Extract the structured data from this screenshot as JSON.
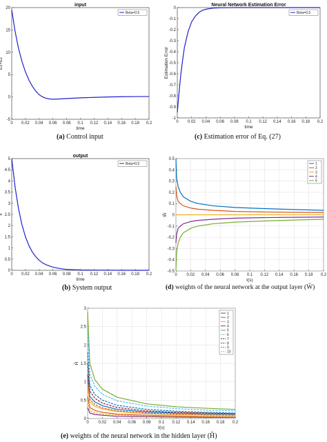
{
  "colors": {
    "blue": "#1f1fd0",
    "c1": "#0072bd",
    "c2": "#d95319",
    "c3": "#edb120",
    "c4": "#7e2f8e",
    "c5": "#77ac30",
    "c6": "#4dbeee",
    "c7": "#a2142f"
  },
  "captions": {
    "a": {
      "letter": "(a)",
      "text": " Control input"
    },
    "c": {
      "letter": "(c)",
      "text": " Estimation error of Eq. (27)"
    },
    "b": {
      "letter": "(b)",
      "text": " System output"
    },
    "d": {
      "letter": "(d)",
      "text": " weights of the neural network at the output layer (Ŵ)"
    },
    "e": {
      "letter": "(e)",
      "text": " weights of the neural network in the hidden layer (Ĥ)"
    }
  },
  "chart_data": [
    {
      "id": "a",
      "type": "line",
      "title": "input",
      "xlabel": "time",
      "ylabel": "u1+u2",
      "xlim": [
        0,
        0.2
      ],
      "ylim": [
        -5,
        20
      ],
      "xticks": [
        "0",
        "0.02",
        "0.04",
        "0.06",
        "0.08",
        "0.1",
        "0.12",
        "0.14",
        "0.16",
        "0.18",
        "0.2"
      ],
      "yticks": [
        "-5",
        "0",
        "5",
        "10",
        "15",
        "20"
      ],
      "grid": false,
      "legend_position": "top-right",
      "series": [
        {
          "name": "Beta=0.5",
          "color": "#1f1fd0",
          "x": [
            0,
            0.005,
            0.01,
            0.015,
            0.02,
            0.025,
            0.03,
            0.035,
            0.04,
            0.045,
            0.05,
            0.055,
            0.06,
            0.07,
            0.08,
            0.1,
            0.12,
            0.14,
            0.16,
            0.18,
            0.2
          ],
          "y": [
            19.5,
            14.6,
            10.8,
            7.9,
            5.6,
            3.8,
            2.4,
            1.3,
            0.5,
            0.0,
            -0.3,
            -0.45,
            -0.5,
            -0.45,
            -0.35,
            -0.2,
            -0.1,
            0.0,
            0.05,
            0.08,
            0.1
          ]
        }
      ]
    },
    {
      "id": "c",
      "type": "line",
      "title": "Neural Network Estimation Error",
      "xlabel": "time",
      "ylabel": "Estimation Error",
      "xlim": [
        0,
        0.2
      ],
      "ylim": [
        -1,
        0
      ],
      "xticks": [
        "0",
        "0.02",
        "0.04",
        "0.06",
        "0.08",
        "0.1",
        "0.12",
        "0.14",
        "0.16",
        "0.18",
        "0.2"
      ],
      "yticks": [
        "-1",
        "-0.9",
        "-0.8",
        "-0.7",
        "-0.6",
        "-0.5",
        "-0.4",
        "-0.3",
        "-0.2",
        "-0.1",
        "0"
      ],
      "grid": false,
      "legend_position": "top-right",
      "series": [
        {
          "name": "Beta=0.5",
          "color": "#1f1fd0",
          "x": [
            0,
            0.002,
            0.005,
            0.008,
            0.01,
            0.015,
            0.02,
            0.025,
            0.03,
            0.035,
            0.04,
            0.05,
            0.06,
            0.08,
            0.1,
            0.15,
            0.2
          ],
          "y": [
            -0.95,
            -0.8,
            -0.6,
            -0.45,
            -0.36,
            -0.22,
            -0.13,
            -0.08,
            -0.045,
            -0.025,
            -0.015,
            -0.005,
            -0.002,
            0,
            0,
            0,
            0
          ]
        }
      ]
    },
    {
      "id": "b",
      "type": "line",
      "title": "output",
      "xlabel": "time",
      "ylabel": "x",
      "xlim": [
        0,
        0.2
      ],
      "ylim": [
        0,
        5
      ],
      "xticks": [
        "0",
        "0.02",
        "0.04",
        "0.06",
        "0.08",
        "0.1",
        "0.12",
        "0.14",
        "0.16",
        "0.18",
        "0.2"
      ],
      "yticks": [
        "0",
        "0.5",
        "1",
        "1.5",
        "2",
        "2.5",
        "3",
        "3.5",
        "4",
        "4.5",
        "5"
      ],
      "grid": false,
      "legend_position": "top-right",
      "series": [
        {
          "name": "Beta=0.5",
          "color": "#1f1fd0",
          "x": [
            0,
            0.005,
            0.01,
            0.015,
            0.02,
            0.025,
            0.03,
            0.035,
            0.04,
            0.045,
            0.05,
            0.06,
            0.07,
            0.08,
            0.1,
            0.12,
            0.15,
            0.2
          ],
          "y": [
            5,
            3.7,
            2.74,
            2.03,
            1.5,
            1.11,
            0.82,
            0.61,
            0.45,
            0.33,
            0.25,
            0.14,
            0.08,
            0.04,
            0.015,
            0.01,
            0.005,
            0
          ]
        }
      ]
    },
    {
      "id": "d",
      "type": "line",
      "title": "",
      "xlabel": "t(s)",
      "ylabel": "Ŵ",
      "xlim": [
        0,
        0.2
      ],
      "ylim": [
        -0.5,
        0.5
      ],
      "xticks": [
        "0",
        "0.02",
        "0.04",
        "0.06",
        "0.08",
        "0.1",
        "0.12",
        "0.14",
        "0.16",
        "0.18",
        "0.2"
      ],
      "yticks": [
        "-0.5",
        "-0.4",
        "-0.3",
        "-0.2",
        "-0.1",
        "0",
        "0.1",
        "0.2",
        "0.3",
        "0.4",
        "0.5"
      ],
      "grid": true,
      "legend_position": "top-right",
      "series": [
        {
          "name": "1",
          "color": "#0072bd",
          "x": [
            0,
            0.001,
            0.003,
            0.006,
            0.01,
            0.02,
            0.03,
            0.05,
            0.08,
            0.12,
            0.16,
            0.2
          ],
          "y": [
            0.5,
            0.33,
            0.25,
            0.2,
            0.16,
            0.12,
            0.1,
            0.08,
            0.065,
            0.055,
            0.047,
            0.04
          ]
        },
        {
          "name": "2",
          "color": "#d95319",
          "x": [
            0,
            0.001,
            0.003,
            0.006,
            0.01,
            0.02,
            0.03,
            0.05,
            0.08,
            0.12,
            0.16,
            0.2
          ],
          "y": [
            0.25,
            0.17,
            0.12,
            0.1,
            0.08,
            0.06,
            0.05,
            0.04,
            0.03,
            0.025,
            0.022,
            0.02
          ]
        },
        {
          "name": "3",
          "color": "#edb120",
          "x": [
            0,
            0.005,
            0.02,
            0.05,
            0.1,
            0.2
          ],
          "y": [
            0,
            0,
            0,
            0,
            0,
            0
          ]
        },
        {
          "name": "4",
          "color": "#7e2f8e",
          "x": [
            0,
            0.001,
            0.003,
            0.006,
            0.01,
            0.02,
            0.03,
            0.05,
            0.08,
            0.12,
            0.16,
            0.2
          ],
          "y": [
            -0.25,
            -0.17,
            -0.12,
            -0.1,
            -0.08,
            -0.06,
            -0.05,
            -0.04,
            -0.03,
            -0.025,
            -0.022,
            -0.02
          ]
        },
        {
          "name": "5",
          "color": "#77ac30",
          "x": [
            0,
            0.001,
            0.003,
            0.006,
            0.01,
            0.02,
            0.03,
            0.05,
            0.08,
            0.12,
            0.16,
            0.2
          ],
          "y": [
            -0.5,
            -0.33,
            -0.25,
            -0.2,
            -0.16,
            -0.12,
            -0.1,
            -0.08,
            -0.065,
            -0.055,
            -0.047,
            -0.04
          ]
        }
      ]
    },
    {
      "id": "e",
      "type": "line",
      "title": "",
      "xlabel": "t(s)",
      "ylabel": "Ĥ",
      "xlim": [
        0,
        0.2
      ],
      "ylim": [
        0,
        3
      ],
      "xticks": [
        "0",
        "0.02",
        "0.04",
        "0.06",
        "0.08",
        "0.1",
        "0.12",
        "0.14",
        "0.16",
        "0.18",
        "0.2"
      ],
      "yticks": [
        "0",
        "0.5",
        "1",
        "1.5",
        "2",
        "2.5",
        "3"
      ],
      "grid": true,
      "legend_position": "top-right",
      "series": [
        {
          "name": "1",
          "color": "#0072bd",
          "dash": false,
          "x": [
            0,
            0.003,
            0.01,
            0.02,
            0.04,
            0.08,
            0.12,
            0.16,
            0.2
          ],
          "y": [
            1.2,
            0.6,
            0.45,
            0.35,
            0.25,
            0.18,
            0.15,
            0.13,
            0.12
          ]
        },
        {
          "name": "2",
          "color": "#d95319",
          "dash": false,
          "x": [
            0,
            0.003,
            0.01,
            0.02,
            0.04,
            0.08,
            0.12,
            0.16,
            0.2
          ],
          "y": [
            0.6,
            0.3,
            0.22,
            0.17,
            0.12,
            0.09,
            0.07,
            0.06,
            0.05
          ]
        },
        {
          "name": "3",
          "color": "#edb120",
          "dash": false,
          "x": [
            0,
            0.003,
            0.01,
            0.02,
            0.04,
            0.08,
            0.12,
            0.16,
            0.2
          ],
          "y": [
            0.9,
            0.45,
            0.33,
            0.26,
            0.19,
            0.13,
            0.11,
            0.1,
            0.09
          ]
        },
        {
          "name": "4",
          "color": "#7e2f8e",
          "dash": false,
          "x": [
            0,
            0.003,
            0.01,
            0.02,
            0.04,
            0.08,
            0.12,
            0.16,
            0.2
          ],
          "y": [
            0.3,
            0.15,
            0.11,
            0.09,
            0.06,
            0.05,
            0.04,
            0.03,
            0.03
          ]
        },
        {
          "name": "5",
          "color": "#77ac30",
          "dash": false,
          "x": [
            0,
            0.003,
            0.01,
            0.02,
            0.04,
            0.08,
            0.12,
            0.16,
            0.2
          ],
          "y": [
            2.9,
            1.5,
            1.05,
            0.8,
            0.58,
            0.4,
            0.32,
            0.28,
            0.25
          ]
        },
        {
          "name": "6",
          "color": "#4dbeee",
          "dash": true,
          "x": [
            0,
            0.003,
            0.01,
            0.02,
            0.04,
            0.08,
            0.12,
            0.16,
            0.2
          ],
          "y": [
            2.4,
            1.2,
            0.87,
            0.66,
            0.48,
            0.34,
            0.27,
            0.23,
            0.21
          ]
        },
        {
          "name": "7",
          "color": "#a2142f",
          "dash": true,
          "x": [
            0,
            0.003,
            0.01,
            0.02,
            0.04,
            0.08,
            0.12,
            0.16,
            0.2
          ],
          "y": [
            1.5,
            0.75,
            0.55,
            0.42,
            0.3,
            0.21,
            0.17,
            0.15,
            0.13
          ]
        },
        {
          "name": "8",
          "color": "#0072bd",
          "dash": true,
          "x": [
            0,
            0.003,
            0.01,
            0.02,
            0.04,
            0.08,
            0.12,
            0.16,
            0.2
          ],
          "y": [
            1.8,
            0.9,
            0.65,
            0.5,
            0.36,
            0.25,
            0.2,
            0.17,
            0.15
          ]
        },
        {
          "name": "9",
          "color": "#d95319",
          "dash": true,
          "x": [
            0,
            0.003,
            0.01,
            0.02,
            0.04,
            0.08,
            0.12,
            0.16,
            0.2
          ],
          "y": [
            1.05,
            0.52,
            0.38,
            0.29,
            0.21,
            0.15,
            0.12,
            0.1,
            0.09
          ]
        },
        {
          "name": "10",
          "color": "#edb120",
          "dash": true,
          "x": [
            0,
            0.003,
            0.01,
            0.02,
            0.04,
            0.08,
            0.12,
            0.16,
            0.2
          ],
          "y": [
            0.45,
            0.22,
            0.16,
            0.12,
            0.09,
            0.07,
            0.06,
            0.05,
            0.04
          ]
        }
      ]
    }
  ]
}
